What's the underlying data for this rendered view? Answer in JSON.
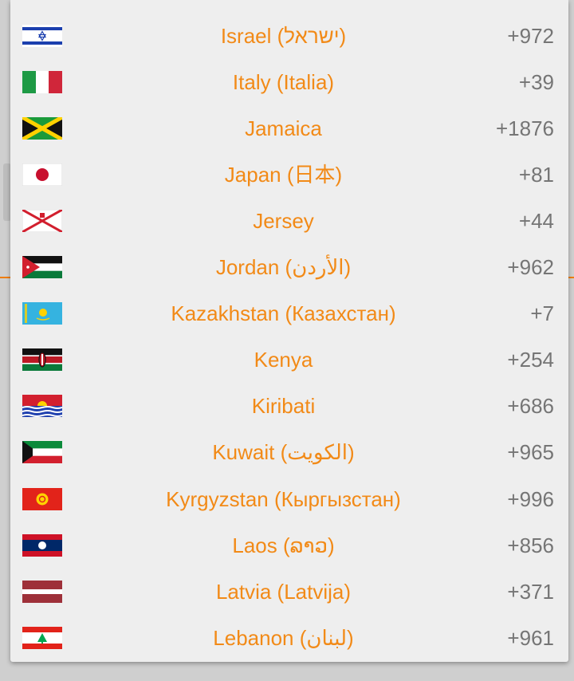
{
  "countries": [
    {
      "name": "Israel (ישראל)",
      "code": "+972",
      "flag": "israel-flag-icon"
    },
    {
      "name": "Italy (Italia)",
      "code": "+39",
      "flag": "italy-flag-icon"
    },
    {
      "name": "Jamaica",
      "code": "+1876",
      "flag": "jamaica-flag-icon"
    },
    {
      "name": "Japan (日本)",
      "code": "+81",
      "flag": "japan-flag-icon"
    },
    {
      "name": "Jersey",
      "code": "+44",
      "flag": "jersey-flag-icon"
    },
    {
      "name": "Jordan (الأردن)",
      "code": "+962",
      "flag": "jordan-flag-icon"
    },
    {
      "name": "Kazakhstan (Казахстан)",
      "code": "+7",
      "flag": "kazakhstan-flag-icon"
    },
    {
      "name": "Kenya",
      "code": "+254",
      "flag": "kenya-flag-icon"
    },
    {
      "name": "Kiribati",
      "code": "+686",
      "flag": "kiribati-flag-icon"
    },
    {
      "name": "Kuwait (الكويت)",
      "code": "+965",
      "flag": "kuwait-flag-icon"
    },
    {
      "name": "Kyrgyzstan (Кыргызстан)",
      "code": "+996",
      "flag": "kyrgyzstan-flag-icon"
    },
    {
      "name": "Laos (ລາວ)",
      "code": "+856",
      "flag": "laos-flag-icon"
    },
    {
      "name": "Latvia (Latvija)",
      "code": "+371",
      "flag": "latvia-flag-icon"
    },
    {
      "name": "Lebanon (لبنان)",
      "code": "+961",
      "flag": "lebanon-flag-icon"
    }
  ],
  "colors": {
    "name_text": "#f28a17",
    "code_text": "#757575",
    "popup_bg": "#eeeeee",
    "accent_line": "#f07d00"
  }
}
